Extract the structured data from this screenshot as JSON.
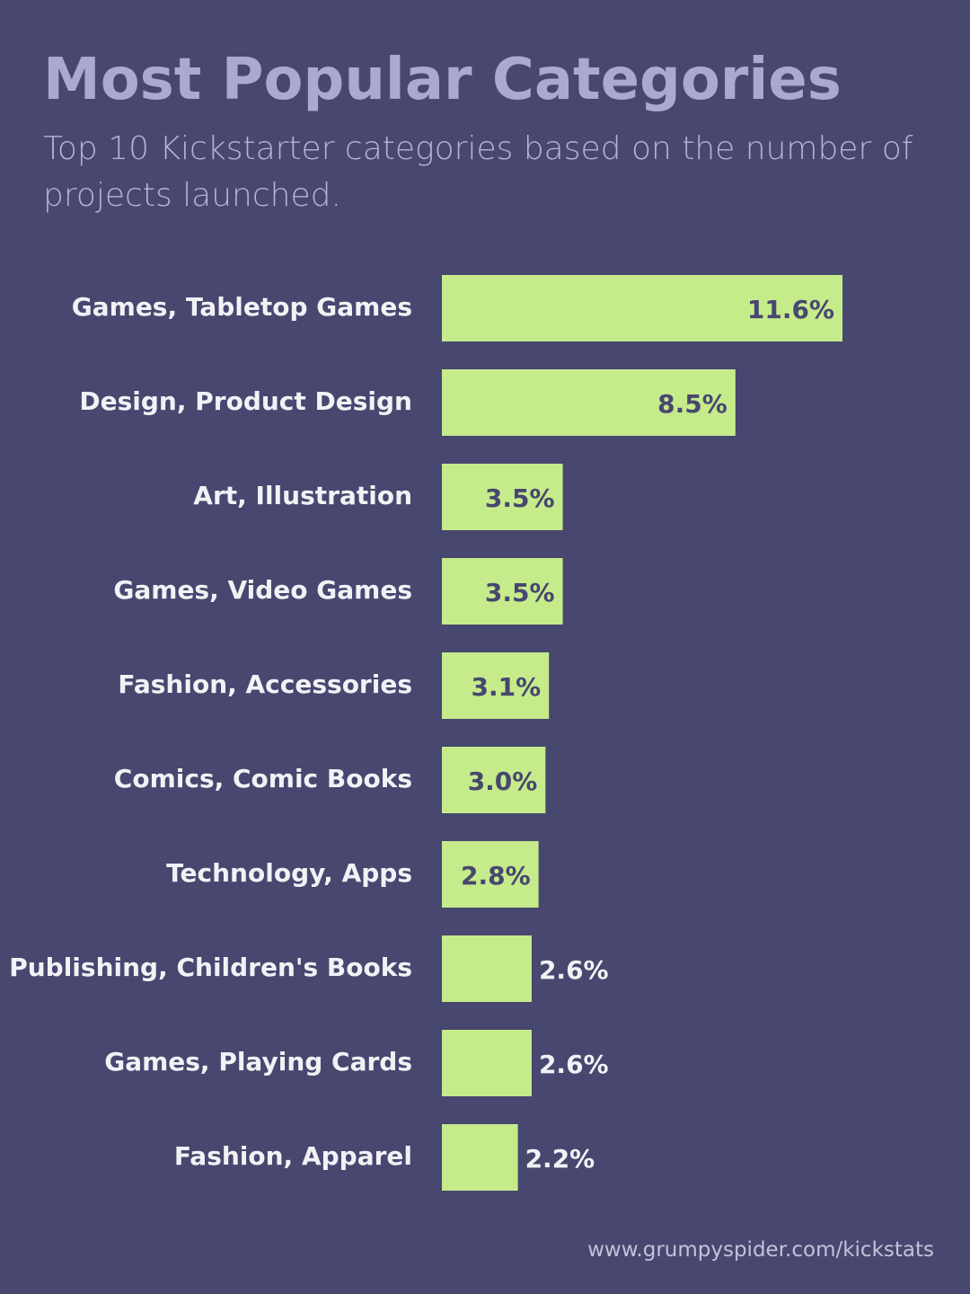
{
  "chart_data": {
    "type": "barh",
    "title": "Most Popular Categories",
    "subtitle": "Top 10 Kickstarter categories based on the number of projects launched.",
    "source": "www.grumpyspider.com/kickstats",
    "categories": [
      "Games, Tabletop Games",
      "Design, Product Design",
      "Art, Illustration",
      "Games, Video Games",
      "Fashion, Accessories",
      "Comics, Comic Books",
      "Technology, Apps",
      "Publishing, Children's Books",
      "Games, Playing Cards",
      "Fashion, Apparel"
    ],
    "values": [
      11.6,
      8.5,
      3.5,
      3.5,
      3.1,
      3.0,
      2.8,
      2.6,
      2.6,
      2.2
    ],
    "value_labels": [
      "11.6%",
      "8.5%",
      "3.5%",
      "3.5%",
      "3.1%",
      "3.0%",
      "2.8%",
      "2.6%",
      "2.6%",
      "2.2%"
    ],
    "color": "#c5eb8b"
  }
}
